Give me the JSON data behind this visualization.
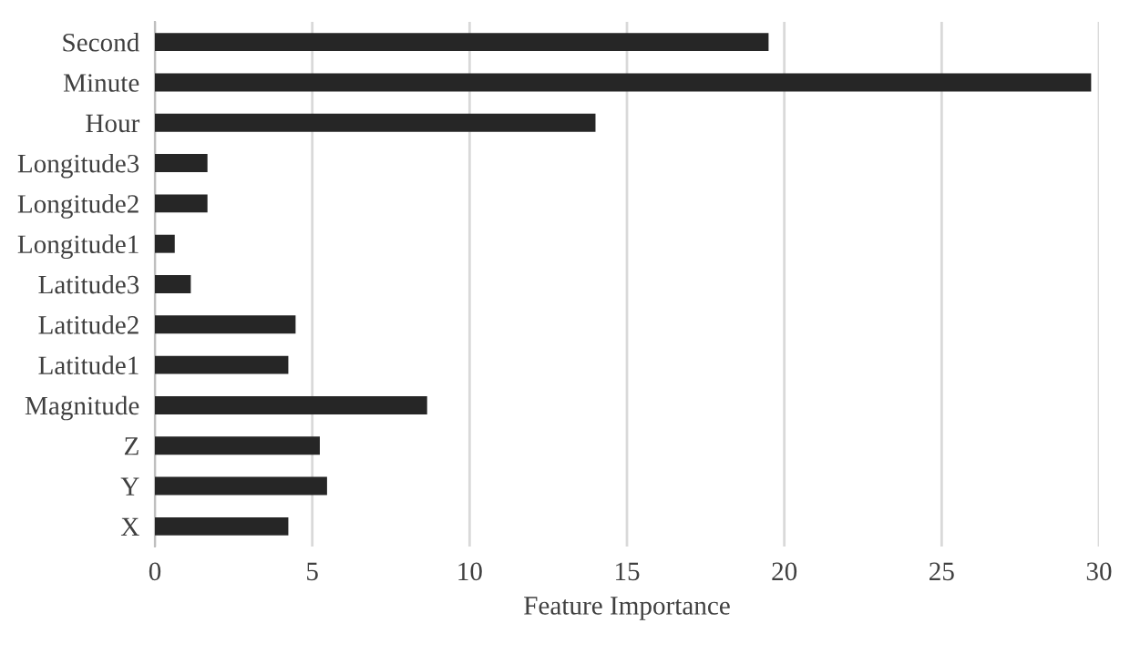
{
  "chart_data": {
    "type": "bar",
    "orientation": "horizontal",
    "xlabel": "Feature Importance",
    "categories": [
      "Second",
      "Minute",
      "Hour",
      "Longitude3",
      "Longitude2",
      "Longitude1",
      "Latitude3",
      "Latitude2",
      "Latitude1",
      "Magnitude",
      "Z",
      "Y",
      "X"
    ],
    "values": [
      19.5,
      29.75,
      14.0,
      1.67,
      1.67,
      0.63,
      1.14,
      4.47,
      4.24,
      8.65,
      5.24,
      5.47,
      4.24
    ],
    "color": "#262626",
    "xlim": [
      0,
      30
    ],
    "xticks": [
      0,
      5,
      10,
      15,
      20,
      25,
      30
    ],
    "grid": "x"
  }
}
